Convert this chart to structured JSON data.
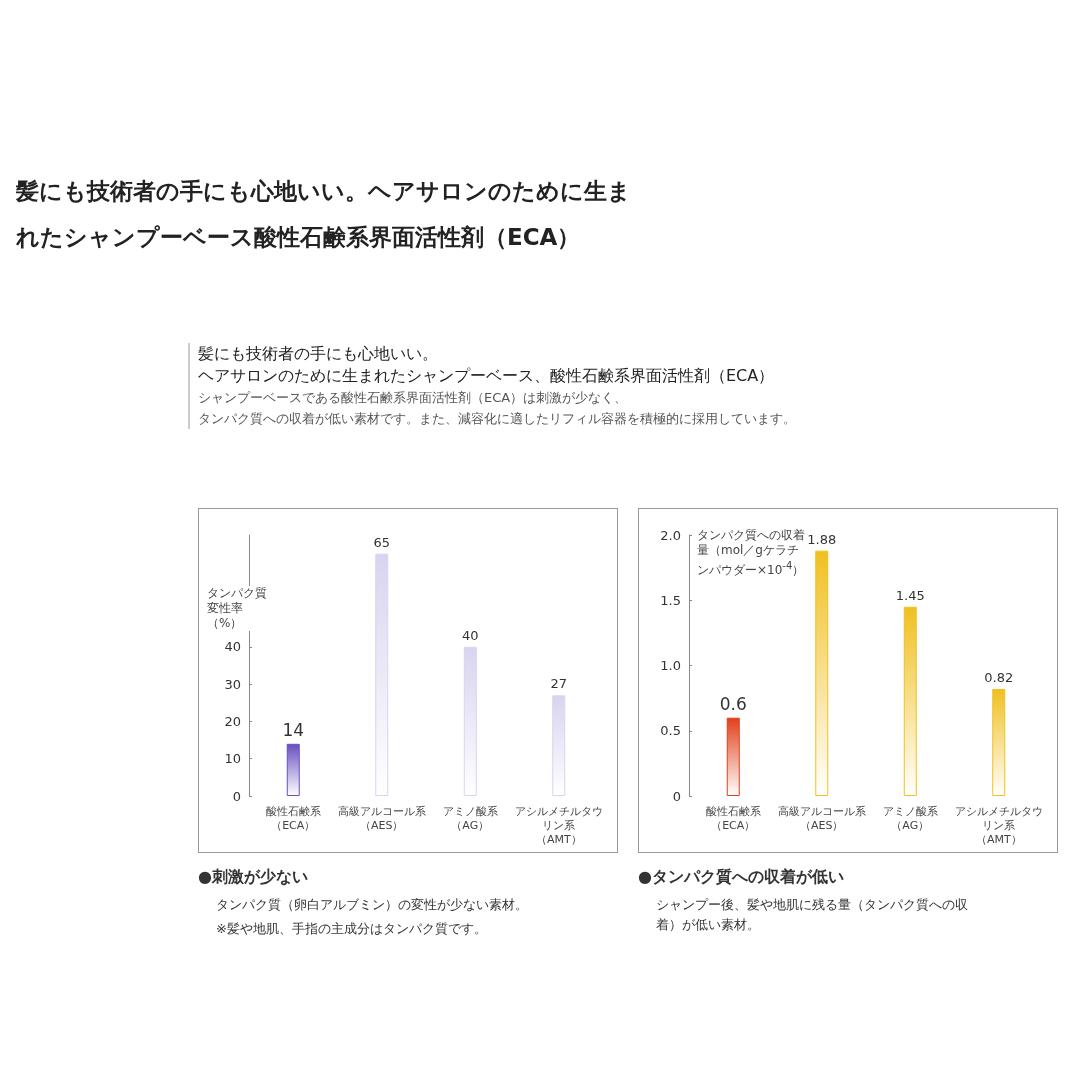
{
  "chart_data": [
    {
      "type": "bar",
      "title": "髪にも技術者の手にも心地いい。ヘアサロンのために生まれたシャンプーベース酸性石鹸系界面活性剤（ECA）",
      "subtitle": "髪にも技術者の手にも心地いい。ヘアサロンのために生まれたシャンプーベース、酸性石鹸系界面活性剤（ECA）",
      "ylabel": "タンパク質変性率（%）",
      "categories": [
        "酸性石鹸系（ECA）",
        "高級アルコール系（AES）",
        "アミノ酸系（AG）",
        "アシルメチルタウリン系（AMT）"
      ],
      "values": [
        14,
        65,
        40,
        27
      ],
      "colors": [
        "#6a4fc0",
        "#d8d4f0",
        "#d8d4f0",
        "#d8d4f0"
      ],
      "ylim": [
        0,
        70
      ],
      "yticks": [
        0,
        10,
        20,
        30,
        40
      ],
      "grid": false,
      "data_labels": true,
      "annotations": [
        "シャンプーベースである酸性石鹸系界面活性剤（ECA）は刺激が少なく、",
        "タンパク質への収着が低い素材です。また、減容化に適したリフィル容器を積極的に採用しています。",
        "●刺激が少ない",
        "タンパク質（卵白アルブミン）の変性が少ない素材。",
        "※髪や地肌、手指の主成分はタンパク質です。"
      ]
    },
    {
      "type": "bar",
      "ylabel": "タンパク質への収着量（mol／gケラチンパウダー×10$^{-4}$）",
      "categories": [
        "酸性石鹸系（ECA）",
        "高級アルコール系（AES）",
        "アミノ酸系（AG）",
        "アシルメチルタウリン系（AMT）"
      ],
      "values": [
        0.6,
        1.88,
        1.45,
        0.82
      ],
      "colors": [
        "#e0401a",
        "#f0c020",
        "#f0c020",
        "#f0c020"
      ],
      "ylim": [
        0,
        2
      ],
      "yticks": [
        0,
        0.5,
        {
          "value": 1,
          "label": "1.0"
        },
        1.5,
        {
          "value": 2,
          "label": "2.0"
        }
      ],
      "grid": false,
      "data_labels": true,
      "annotations": [
        "●タンパク質への収着が低い",
        "シャンプー後、髪や地肌に残る量（タンパク質への収着）が低い素材。"
      ]
    }
  ]
}
